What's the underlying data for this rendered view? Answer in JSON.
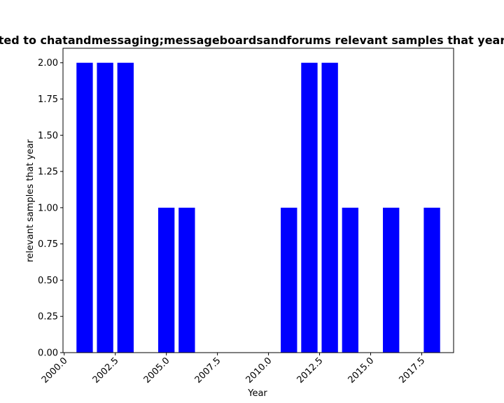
{
  "chart_data": {
    "type": "bar",
    "title": "ted to chatandmessaging;messageboardsandforums relevant samples that year",
    "xlabel": "Year",
    "ylabel": "relevant samples that year",
    "x": [
      2001,
      2002,
      2003,
      2005,
      2006,
      2011,
      2012,
      2013,
      2014,
      2016,
      2018
    ],
    "values": [
      2,
      2,
      2,
      1,
      1,
      1,
      2,
      2,
      1,
      1,
      1
    ],
    "xlim": [
      1999.94,
      2019.06
    ],
    "ylim": [
      0,
      2.1
    ],
    "xticks": [
      "2000.0",
      "2002.5",
      "2005.0",
      "2007.5",
      "2010.0",
      "2012.5",
      "2015.0",
      "2017.5"
    ],
    "xtick_values": [
      2000,
      2002.5,
      2005,
      2007.5,
      2010,
      2012.5,
      2015,
      2017.5
    ],
    "yticks": [
      "0.00",
      "0.25",
      "0.50",
      "0.75",
      "1.00",
      "1.25",
      "1.50",
      "1.75",
      "2.00"
    ],
    "ytick_values": [
      0,
      0.25,
      0.5,
      0.75,
      1.0,
      1.25,
      1.5,
      1.75,
      2.0
    ],
    "bar_width": 0.8,
    "bar_color": "#0000ff",
    "grid": false
  }
}
